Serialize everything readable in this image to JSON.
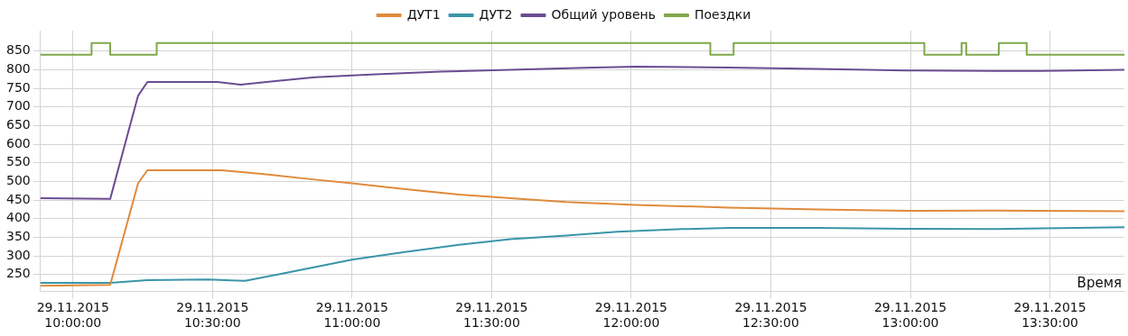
{
  "chart_data": {
    "type": "line",
    "xlabel": "Время",
    "legend": "top",
    "grid": true,
    "marker": "none",
    "line_style": "solid",
    "xlim": [
      "2015-11-29T09:53",
      "2015-11-29T13:46"
    ],
    "ylim": [
      205,
      905
    ],
    "xticks": [
      {
        "value": "2015-11-29T10:00",
        "label": "29.11.2015 10:00:00"
      },
      {
        "value": "2015-11-29T10:30",
        "label": "29.11.2015 10:30:00"
      },
      {
        "value": "2015-11-29T11:00",
        "label": "29.11.2015 11:00:00"
      },
      {
        "value": "2015-11-29T11:30",
        "label": "29.11.2015 11:30:00"
      },
      {
        "value": "2015-11-29T12:00",
        "label": "29.11.2015 12:00:00"
      },
      {
        "value": "2015-11-29T12:30",
        "label": "29.11.2015 12:30:00"
      },
      {
        "value": "2015-11-29T13:00",
        "label": "29.11.2015 13:00:00"
      },
      {
        "value": "2015-11-29T13:30",
        "label": "29.11.2015 13:30:00"
      }
    ],
    "yticks": [
      250,
      300,
      350,
      400,
      450,
      500,
      550,
      600,
      650,
      700,
      750,
      800,
      850
    ],
    "series": [
      {
        "name": "ДУТ1",
        "color": "#e08a3c",
        "x": [
          "2015-11-29T09:53",
          "2015-11-29T10:08",
          "2015-11-29T10:14",
          "2015-11-29T10:16",
          "2015-11-29T10:32",
          "2015-11-29T10:41",
          "2015-11-29T10:52",
          "2015-11-29T11:00",
          "2015-11-29T11:11",
          "2015-11-29T11:23",
          "2015-11-29T11:34",
          "2015-11-29T11:46",
          "2015-11-29T12:01",
          "2015-11-29T12:21",
          "2015-11-29T12:40",
          "2015-11-29T12:59",
          "2015-11-29T13:18",
          "2015-11-29T13:46"
        ],
        "values": [
          220,
          222,
          495,
          530,
          530,
          520,
          505,
          495,
          480,
          465,
          455,
          445,
          437,
          430,
          425,
          421,
          422,
          420
        ]
      },
      {
        "name": "ДУТ2",
        "color": "#3a95a8",
        "x": [
          "2015-11-29T09:53",
          "2015-11-29T10:08",
          "2015-11-29T10:16",
          "2015-11-29T10:29",
          "2015-11-29T10:37",
          "2015-11-29T10:44",
          "2015-11-29T10:52",
          "2015-11-29T11:00",
          "2015-11-29T11:11",
          "2015-11-29T11:23",
          "2015-11-29T11:34",
          "2015-11-29T11:46",
          "2015-11-29T11:57",
          "2015-11-29T12:11",
          "2015-11-29T12:21",
          "2015-11-29T12:40",
          "2015-11-29T12:59",
          "2015-11-29T13:18",
          "2015-11-29T13:46"
        ],
        "values": [
          228,
          228,
          235,
          237,
          233,
          250,
          270,
          290,
          310,
          330,
          345,
          355,
          365,
          372,
          375,
          375,
          373,
          372,
          377
        ]
      },
      {
        "name": "Общий уровень",
        "color": "#6a4c93",
        "x": [
          "2015-11-29T09:53",
          "2015-11-29T10:08",
          "2015-11-29T10:14",
          "2015-11-29T10:16",
          "2015-11-29T10:31",
          "2015-11-29T10:36",
          "2015-11-29T10:44",
          "2015-11-29T10:52",
          "2015-11-29T11:04",
          "2015-11-29T11:19",
          "2015-11-29T11:34",
          "2015-11-29T11:50",
          "2015-11-29T12:01",
          "2015-11-29T12:21",
          "2015-11-29T12:40",
          "2015-11-29T12:59",
          "2015-11-29T13:18",
          "2015-11-29T13:28",
          "2015-11-29T13:46"
        ],
        "values": [
          455,
          453,
          730,
          767,
          767,
          760,
          770,
          780,
          787,
          795,
          800,
          805,
          808,
          806,
          802,
          798,
          797,
          797,
          800
        ]
      },
      {
        "name": "Поездки",
        "type": "step",
        "color": "#7fa84a",
        "x": [
          "2015-11-29T09:53",
          "2015-11-29T10:04",
          "2015-11-29T10:08",
          "2015-11-29T10:18",
          "2015-11-29T12:17",
          "2015-11-29T12:22",
          "2015-11-29T13:03",
          "2015-11-29T13:11",
          "2015-11-29T13:12",
          "2015-11-29T13:19",
          "2015-11-29T13:25",
          "2015-11-29T13:46"
        ],
        "values": [
          840,
          872,
          840,
          872,
          840,
          872,
          840,
          872,
          840,
          872,
          840,
          840
        ]
      }
    ]
  }
}
